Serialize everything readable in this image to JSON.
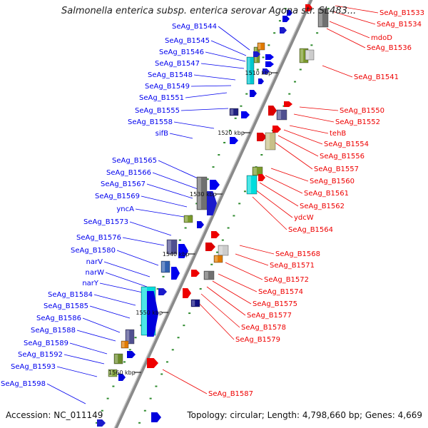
{
  "title": "Salmonella enterica subsp. enterica serovar Agona str. SL483...",
  "footer": {
    "accession": "Accession: NC_011149",
    "topology": "Topology: circular; Length: 4,798,660 bp; Genes: 4,669"
  },
  "colors": {
    "forward_label": "#0000ee",
    "reverse_label": "#ee0000",
    "backbone": "#888888",
    "tick": "#228b22"
  },
  "scale_ticks": [
    "1510 kbp",
    "1520 kbp",
    "1530 kbp",
    "1540 kbp",
    "1550 kbp",
    "1560 kbp"
  ],
  "labels_forward": [
    "SeAg_B1544",
    "SeAg_B1545",
    "SeAg_B1546",
    "SeAg_B1547",
    "SeAg_B1548",
    "SeAg_B1549",
    "SeAg_B1551",
    "SeAg_B1555",
    "SeAg_B1558",
    "sifB",
    "SeAg_B1565",
    "SeAg_B1566",
    "SeAg_B1567",
    "SeAg_B1569",
    "yncA",
    "SeAg_B1573",
    "SeAg_B1576",
    "SeAg_B1580",
    "narV",
    "narW",
    "narY",
    "SeAg_B1584",
    "SeAg_B1585",
    "SeAg_B1586",
    "SeAg_B1588",
    "SeAg_B1589",
    "SeAg_B1592",
    "SeAg_B1593",
    "SeAg_B1598"
  ],
  "labels_reverse": [
    "SeAg_B1533",
    "SeAg_B1534",
    "mdoD",
    "SeAg_B1536",
    "SeAg_B1541",
    "SeAg_B1550",
    "SeAg_B1552",
    "tehB",
    "SeAg_B1554",
    "SeAg_B1556",
    "SeAg_B1557",
    "SeAg_B1560",
    "SeAg_B1561",
    "SeAg_B1562",
    "ydcW",
    "SeAg_B1564",
    "SeAg_B1568",
    "SeAg_B1571",
    "SeAg_B1572",
    "SeAg_B1574",
    "SeAg_B1575",
    "SeAg_B1577",
    "SeAg_B1578",
    "SeAg_B1579",
    "SeAg_B1587"
  ]
}
